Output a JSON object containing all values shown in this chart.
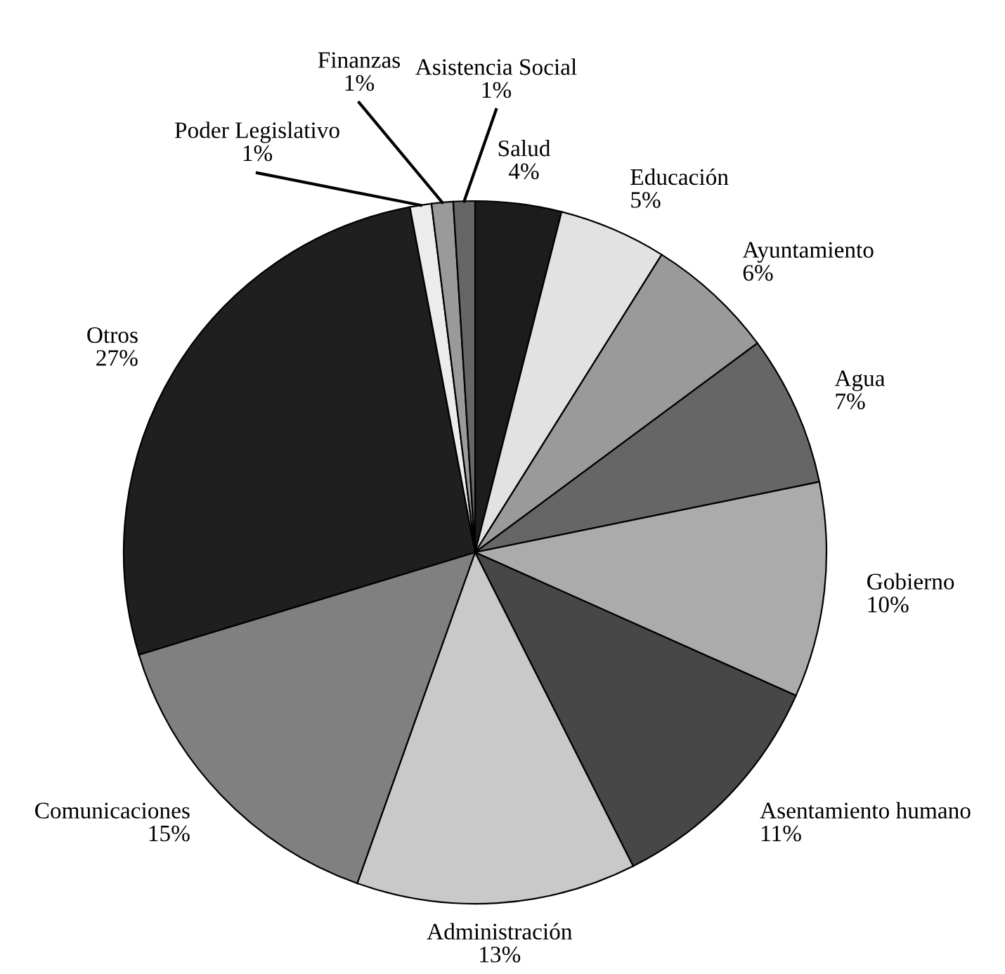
{
  "chart_data": {
    "type": "pie",
    "categories": [
      "Salud",
      "Educación",
      "Ayuntamiento",
      "Agua",
      "Gobierno",
      "Asentamiento humano",
      "Administración",
      "Comunicaciones",
      "Otros",
      "Poder Legislativo",
      "Finanzas",
      "Asistencia Social"
    ],
    "values": [
      4,
      5,
      6,
      7,
      10,
      11,
      13,
      15,
      27,
      1,
      1,
      1
    ],
    "colors": [
      "#1c1c1c",
      "#e2e2e2",
      "#9a9a9a",
      "#666666",
      "#ababab",
      "#474747",
      "#c9c9c9",
      "#808080",
      "#1f1f1f",
      "#ececec",
      "#9a9a9a",
      "#666666"
    ],
    "value_labels": [
      "4%",
      "5%",
      "6%",
      "7%",
      "10%",
      "11%",
      "13%",
      "15%",
      "27%",
      "1%",
      "1%",
      "1%"
    ]
  }
}
